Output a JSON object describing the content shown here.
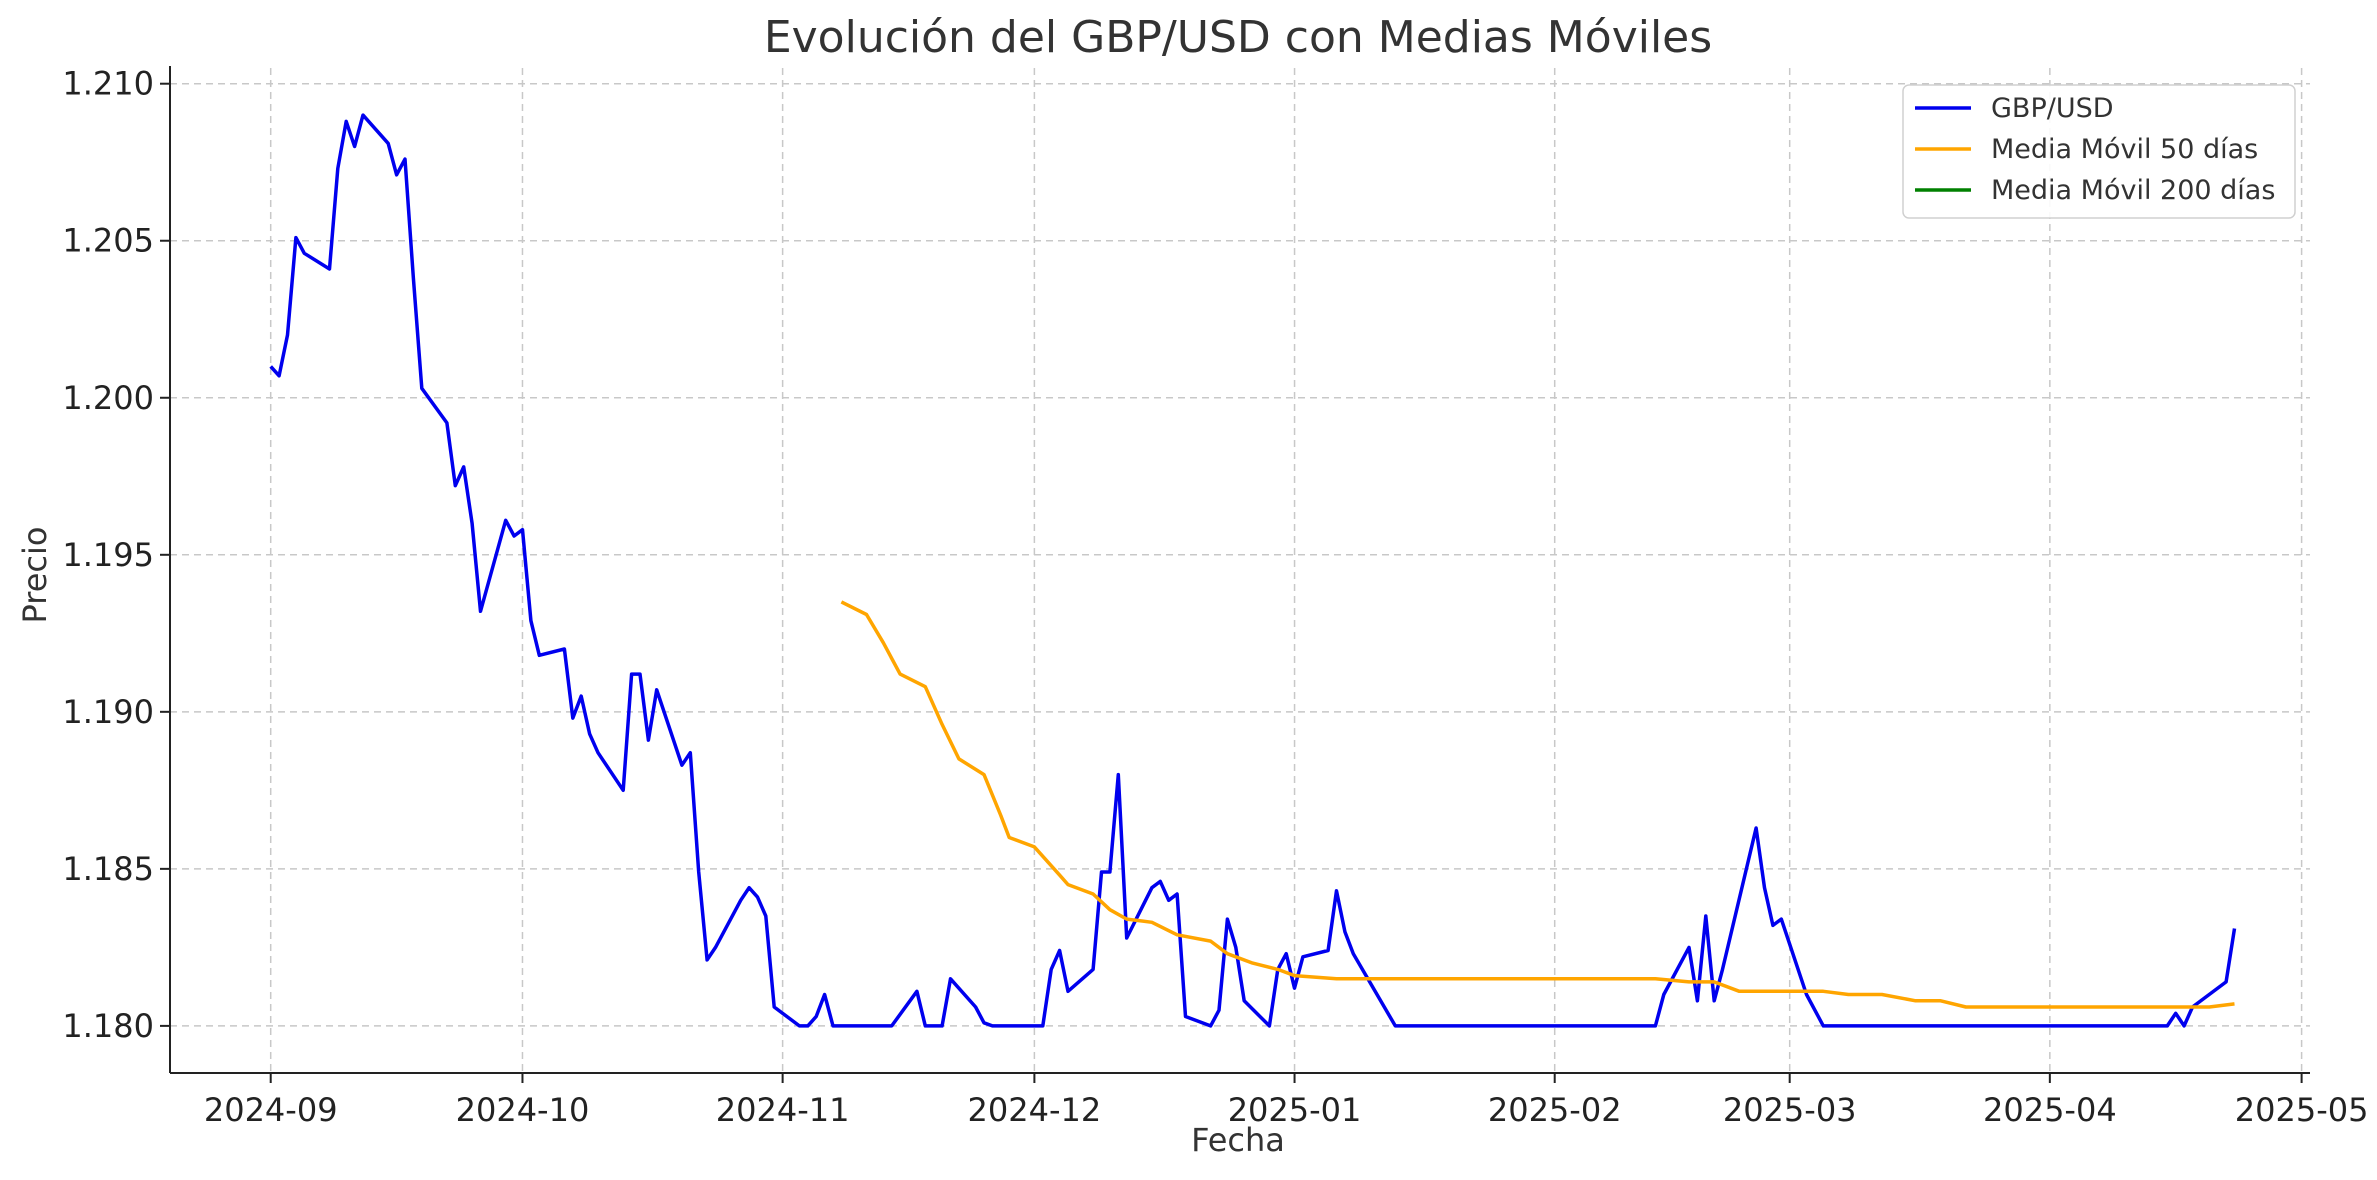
{
  "chart_data": {
    "type": "line",
    "title": "Evolución del GBP/USD con Medias Móviles",
    "xlabel": "Fecha",
    "ylabel": "Precio",
    "xlim": [
      "2024-08-20",
      "2025-05-02"
    ],
    "ylim": [
      1.1785,
      1.2105
    ],
    "x_ticks": [
      "2024-09",
      "2024-10",
      "2024-11",
      "2024-12",
      "2025-01",
      "2025-02",
      "2025-03",
      "2025-04",
      "2025-05"
    ],
    "y_ticks": [
      "1.180",
      "1.185",
      "1.190",
      "1.195",
      "1.200",
      "1.205",
      "1.210"
    ],
    "grid": true,
    "legend_position": "top-right",
    "series": [
      {
        "name": "GBP/USD",
        "color": "#0000ee",
        "points": [
          [
            "2024-09-01",
            1.201
          ],
          [
            "2024-09-02",
            1.2007
          ],
          [
            "2024-09-03",
            1.202
          ],
          [
            "2024-09-04",
            1.2051
          ],
          [
            "2024-09-05",
            1.2046
          ],
          [
            "2024-09-08",
            1.2041
          ],
          [
            "2024-09-09",
            1.2073
          ],
          [
            "2024-09-10",
            1.2088
          ],
          [
            "2024-09-11",
            1.208
          ],
          [
            "2024-09-12",
            1.209
          ],
          [
            "2024-09-15",
            1.2081
          ],
          [
            "2024-09-16",
            1.2071
          ],
          [
            "2024-09-17",
            1.2076
          ],
          [
            "2024-09-18",
            1.2038
          ],
          [
            "2024-09-19",
            1.2003
          ],
          [
            "2024-09-22",
            1.1992
          ],
          [
            "2024-09-23",
            1.1972
          ],
          [
            "2024-09-24",
            1.1978
          ],
          [
            "2024-09-25",
            1.196
          ],
          [
            "2024-09-26",
            1.1932
          ],
          [
            "2024-09-29",
            1.1961
          ],
          [
            "2024-09-30",
            1.1956
          ],
          [
            "2024-10-01",
            1.1958
          ],
          [
            "2024-10-02",
            1.1929
          ],
          [
            "2024-10-03",
            1.1918
          ],
          [
            "2024-10-06",
            1.192
          ],
          [
            "2024-10-07",
            1.1898
          ],
          [
            "2024-10-08",
            1.1905
          ],
          [
            "2024-10-09",
            1.1893
          ],
          [
            "2024-10-10",
            1.1887
          ],
          [
            "2024-10-13",
            1.1875
          ],
          [
            "2024-10-14",
            1.1912
          ],
          [
            "2024-10-15",
            1.1912
          ],
          [
            "2024-10-16",
            1.1891
          ],
          [
            "2024-10-17",
            1.1907
          ],
          [
            "2024-10-20",
            1.1883
          ],
          [
            "2024-10-21",
            1.1887
          ],
          [
            "2024-10-22",
            1.1849
          ],
          [
            "2024-10-23",
            1.1821
          ],
          [
            "2024-10-24",
            1.1825
          ],
          [
            "2024-10-27",
            1.184
          ],
          [
            "2024-10-28",
            1.1844
          ],
          [
            "2024-10-29",
            1.1841
          ],
          [
            "2024-10-30",
            1.1835
          ],
          [
            "2024-10-31",
            1.1806
          ],
          [
            "2024-11-03",
            1.18
          ],
          [
            "2024-11-04",
            1.18
          ],
          [
            "2024-11-05",
            1.1803
          ],
          [
            "2024-11-06",
            1.181
          ],
          [
            "2024-11-07",
            1.18
          ],
          [
            "2024-11-14",
            1.18
          ],
          [
            "2024-11-17",
            1.1811
          ],
          [
            "2024-11-18",
            1.18
          ],
          [
            "2024-11-20",
            1.18
          ],
          [
            "2024-11-21",
            1.1815
          ],
          [
            "2024-11-24",
            1.1806
          ],
          [
            "2024-11-25",
            1.1801
          ],
          [
            "2024-11-26",
            1.18
          ],
          [
            "2024-12-02",
            1.18
          ],
          [
            "2024-12-03",
            1.1818
          ],
          [
            "2024-12-04",
            1.1824
          ],
          [
            "2024-12-05",
            1.1811
          ],
          [
            "2024-12-08",
            1.1818
          ],
          [
            "2024-12-09",
            1.1849
          ],
          [
            "2024-12-10",
            1.1849
          ],
          [
            "2024-12-11",
            1.188
          ],
          [
            "2024-12-12",
            1.1828
          ],
          [
            "2024-12-15",
            1.1844
          ],
          [
            "2024-12-16",
            1.1846
          ],
          [
            "2024-12-17",
            1.184
          ],
          [
            "2024-12-18",
            1.1842
          ],
          [
            "2024-12-19",
            1.1803
          ],
          [
            "2024-12-22",
            1.18
          ],
          [
            "2024-12-23",
            1.1805
          ],
          [
            "2024-12-24",
            1.1834
          ],
          [
            "2024-12-25",
            1.1825
          ],
          [
            "2024-12-26",
            1.1808
          ],
          [
            "2024-12-29",
            1.18
          ],
          [
            "2024-12-30",
            1.1818
          ],
          [
            "2024-12-31",
            1.1823
          ],
          [
            "2025-01-01",
            1.1812
          ],
          [
            "2025-01-02",
            1.1822
          ],
          [
            "2025-01-05",
            1.1824
          ],
          [
            "2025-01-06",
            1.1843
          ],
          [
            "2025-01-07",
            1.183
          ],
          [
            "2025-01-08",
            1.1823
          ],
          [
            "2025-01-13",
            1.18
          ],
          [
            "2025-02-13",
            1.18
          ],
          [
            "2025-02-14",
            1.181
          ],
          [
            "2025-02-17",
            1.1825
          ],
          [
            "2025-02-18",
            1.1808
          ],
          [
            "2025-02-19",
            1.1835
          ],
          [
            "2025-02-20",
            1.1808
          ],
          [
            "2025-02-21",
            1.1818
          ],
          [
            "2025-02-25",
            1.1863
          ],
          [
            "2025-02-26",
            1.1844
          ],
          [
            "2025-02-27",
            1.1832
          ],
          [
            "2025-02-28",
            1.1834
          ],
          [
            "2025-03-03",
            1.181
          ],
          [
            "2025-03-05",
            1.18
          ],
          [
            "2025-04-15",
            1.18
          ],
          [
            "2025-04-16",
            1.1804
          ],
          [
            "2025-04-17",
            1.18
          ],
          [
            "2025-04-18",
            1.1806
          ],
          [
            "2025-04-22",
            1.1814
          ],
          [
            "2025-04-23",
            1.1831
          ]
        ]
      },
      {
        "name": "Media Móvil 50 días",
        "color": "#ffa500",
        "points": [
          [
            "2024-11-08",
            1.1935
          ],
          [
            "2024-11-11",
            1.1931
          ],
          [
            "2024-11-13",
            1.1922
          ],
          [
            "2024-11-15",
            1.1912
          ],
          [
            "2024-11-18",
            1.1908
          ],
          [
            "2024-11-20",
            1.1896
          ],
          [
            "2024-11-22",
            1.1885
          ],
          [
            "2024-11-25",
            1.188
          ],
          [
            "2024-11-27",
            1.1867
          ],
          [
            "2024-11-28",
            1.186
          ],
          [
            "2024-12-01",
            1.1857
          ],
          [
            "2024-12-04",
            1.1848
          ],
          [
            "2024-12-05",
            1.1845
          ],
          [
            "2024-12-08",
            1.1842
          ],
          [
            "2024-12-10",
            1.1837
          ],
          [
            "2024-12-12",
            1.1834
          ],
          [
            "2024-12-15",
            1.1833
          ],
          [
            "2024-12-18",
            1.1829
          ],
          [
            "2024-12-22",
            1.1827
          ],
          [
            "2024-12-24",
            1.1823
          ],
          [
            "2024-12-27",
            1.182
          ],
          [
            "2024-12-30",
            1.1818
          ],
          [
            "2025-01-01",
            1.1816
          ],
          [
            "2025-01-06",
            1.1815
          ],
          [
            "2025-01-10",
            1.1815
          ],
          [
            "2025-01-20",
            1.1815
          ],
          [
            "2025-02-01",
            1.1815
          ],
          [
            "2025-02-13",
            1.1815
          ],
          [
            "2025-02-17",
            1.1814
          ],
          [
            "2025-02-20",
            1.1814
          ],
          [
            "2025-02-23",
            1.1811
          ],
          [
            "2025-02-28",
            1.1811
          ],
          [
            "2025-03-05",
            1.1811
          ],
          [
            "2025-03-08",
            1.181
          ],
          [
            "2025-03-12",
            1.181
          ],
          [
            "2025-03-16",
            1.1808
          ],
          [
            "2025-03-19",
            1.1808
          ],
          [
            "2025-03-22",
            1.1806
          ],
          [
            "2025-04-01",
            1.1806
          ],
          [
            "2025-04-10",
            1.1806
          ],
          [
            "2025-04-20",
            1.1806
          ],
          [
            "2025-04-23",
            1.1807
          ]
        ]
      },
      {
        "name": "Media Móvil 200 días",
        "color": "#008000",
        "points": []
      }
    ]
  }
}
